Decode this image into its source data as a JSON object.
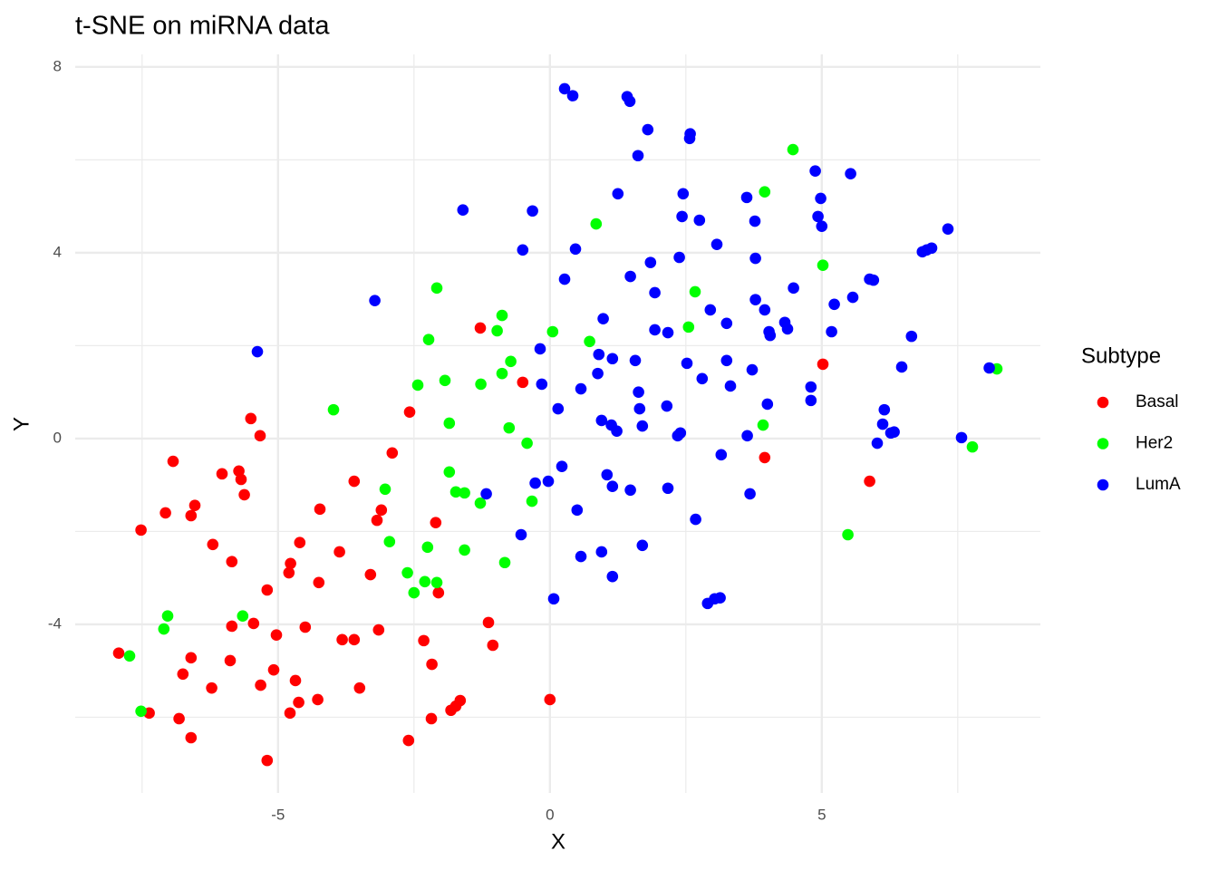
{
  "chart_data": {
    "type": "scatter",
    "title": "t-SNE on miRNA data",
    "x_label": "X",
    "y_label": "Y",
    "legend_title": "Subtype",
    "legend": "right",
    "grid": true,
    "minor_grid": true,
    "xlim": [
      -8.73,
      9.02
    ],
    "ylim": [
      -7.63,
      8.27
    ],
    "xticks": [
      -5,
      0,
      5
    ],
    "yticks": [
      -4,
      0,
      4,
      8
    ],
    "series": [
      {
        "name": "Basal",
        "color": "#ff0000",
        "x": [
          -1.28,
          -0.5,
          -2.58,
          -5.5,
          -5.33,
          -2.9,
          -6.93,
          -6.03,
          -5.72,
          -5.68,
          -3.6,
          -5.62,
          -6.53,
          -7.07,
          -6.6,
          -4.23,
          -3.1,
          -3.18,
          -2.1,
          -7.52,
          -6.2,
          -4.6,
          -3.87,
          -5.85,
          -4.77,
          -4.8,
          -3.3,
          -4.25,
          -5.2,
          -2.05,
          -1.13,
          -5.45,
          -5.85,
          -4.5,
          -3.15,
          -5.03,
          -3.82,
          -3.6,
          -2.32,
          -1.05,
          -7.93,
          -6.6,
          -5.88,
          -2.17,
          -5.08,
          -6.75,
          -4.68,
          -6.22,
          -5.32,
          -3.5,
          -4.27,
          -4.62,
          -1.65,
          0,
          -1.73,
          -1.82,
          -7.37,
          -4.78,
          -6.82,
          -2.18,
          -6.6,
          -2.6,
          -5.2,
          5.02,
          3.95,
          5.88
        ],
        "y": [
          2.38,
          1.21,
          0.57,
          0.43,
          0.06,
          -0.31,
          -0.49,
          -0.76,
          -0.7,
          -0.88,
          -0.92,
          -1.21,
          -1.44,
          -1.6,
          -1.66,
          -1.52,
          -1.54,
          -1.76,
          -1.81,
          -1.97,
          -2.28,
          -2.24,
          -2.44,
          -2.65,
          -2.69,
          -2.89,
          -2.93,
          -3.1,
          -3.26,
          -3.32,
          -3.96,
          -3.98,
          -4.04,
          -4.06,
          -4.12,
          -4.23,
          -4.33,
          -4.33,
          -4.35,
          -4.45,
          -4.62,
          -4.72,
          -4.78,
          -4.86,
          -4.98,
          -5.07,
          -5.21,
          -5.37,
          -5.31,
          -5.37,
          -5.62,
          -5.68,
          -5.64,
          -5.62,
          -5.76,
          -5.85,
          -5.91,
          -5.91,
          -6.03,
          -6.03,
          -6.44,
          -6.5,
          -6.93,
          1.6,
          -0.41,
          -0.92
        ]
      },
      {
        "name": "Her2",
        "color": "#00ff00",
        "x": [
          4.47,
          3.95,
          0.85,
          5.02,
          -2.08,
          2.67,
          -0.88,
          0.05,
          -0.97,
          2.55,
          -2.23,
          0.73,
          -0.72,
          -0.88,
          8.22,
          -1.93,
          -2.43,
          -1.27,
          -3.98,
          -1.85,
          3.92,
          -0.75,
          -0.42,
          7.77,
          -1.85,
          -3.03,
          -1.73,
          -1.57,
          -1.28,
          -0.33,
          5.48,
          -2.95,
          -2.25,
          -1.57,
          -0.83,
          -2.62,
          -2.3,
          -2.08,
          -2.5,
          -7.03,
          -5.65,
          -7.1,
          -7.73,
          -7.52
        ],
        "y": [
          6.22,
          5.31,
          4.62,
          3.73,
          3.24,
          3.16,
          2.65,
          2.3,
          2.32,
          2.4,
          2.13,
          2.09,
          1.66,
          1.4,
          1.5,
          1.25,
          1.15,
          1.17,
          0.62,
          0.33,
          0.29,
          0.23,
          -0.1,
          -0.18,
          -0.72,
          -1.09,
          -1.15,
          -1.17,
          -1.39,
          -1.35,
          -2.07,
          -2.22,
          -2.34,
          -2.4,
          -2.67,
          -2.89,
          -3.08,
          -3.1,
          -3.32,
          -3.82,
          -3.82,
          -4.1,
          -4.68,
          -5.87
        ]
      },
      {
        "name": "LumA",
        "color": "#0000ff",
        "x": [
          0.27,
          0.42,
          1.42,
          1.47,
          1.8,
          2.58,
          2.57,
          1.62,
          4.88,
          5.53,
          1.25,
          2.45,
          4.98,
          3.62,
          -1.6,
          -0.32,
          2.43,
          4.93,
          2.75,
          3.77,
          5.0,
          7.32,
          -0.5,
          0.47,
          3.07,
          6.85,
          6.93,
          7.02,
          2.38,
          3.78,
          1.85,
          0.27,
          1.48,
          5.88,
          5.95,
          4.48,
          1.93,
          5.57,
          5.23,
          -3.22,
          3.78,
          2.95,
          3.95,
          0.98,
          3.25,
          4.32,
          4.37,
          4.03,
          4.05,
          5.18,
          1.93,
          2.17,
          6.65,
          -5.38,
          -0.18,
          0.9,
          1.15,
          1.57,
          2.52,
          3.25,
          6.47,
          8.08,
          3.72,
          0.88,
          2.8,
          0.57,
          -0.15,
          3.32,
          4.8,
          1.63,
          4.8,
          4.0,
          2.15,
          0.15,
          1.65,
          6.15,
          0.95,
          1.13,
          1.7,
          6.12,
          1.23,
          2.4,
          2.35,
          6.27,
          6.33,
          3.63,
          7.57,
          6.02,
          3.15,
          0.22,
          1.05,
          -0.03,
          -0.27,
          1.15,
          1.48,
          2.17,
          -1.17,
          3.68,
          0.5,
          2.68,
          -0.53,
          1.7,
          0.57,
          0.95,
          1.15,
          0.07,
          3.13,
          3.03,
          2.9
        ],
        "y": [
          7.53,
          7.38,
          7.36,
          7.26,
          6.65,
          6.56,
          6.46,
          6.09,
          5.76,
          5.7,
          5.27,
          5.27,
          5.17,
          5.19,
          4.92,
          4.9,
          4.78,
          4.78,
          4.7,
          4.68,
          4.57,
          4.51,
          4.06,
          4.08,
          4.18,
          4.02,
          4.06,
          4.1,
          3.9,
          3.88,
          3.79,
          3.43,
          3.49,
          3.43,
          3.41,
          3.24,
          3.14,
          3.04,
          2.89,
          2.97,
          2.99,
          2.77,
          2.77,
          2.58,
          2.48,
          2.5,
          2.36,
          2.3,
          2.22,
          2.3,
          2.34,
          2.28,
          2.2,
          1.87,
          1.93,
          1.81,
          1.72,
          1.68,
          1.62,
          1.68,
          1.54,
          1.52,
          1.48,
          1.4,
          1.29,
          1.07,
          1.17,
          1.13,
          1.11,
          1.0,
          0.82,
          0.74,
          0.7,
          0.64,
          0.64,
          0.62,
          0.39,
          0.29,
          0.27,
          0.31,
          0.16,
          0.12,
          0.06,
          0.12,
          0.14,
          0.06,
          0.02,
          -0.1,
          -0.35,
          -0.6,
          -0.78,
          -0.92,
          -0.96,
          -1.03,
          -1.11,
          -1.07,
          -1.19,
          -1.19,
          -1.54,
          -1.74,
          -2.07,
          -2.3,
          -2.54,
          -2.44,
          -2.97,
          -3.45,
          -3.43,
          -3.45,
          -3.55
        ]
      }
    ]
  }
}
